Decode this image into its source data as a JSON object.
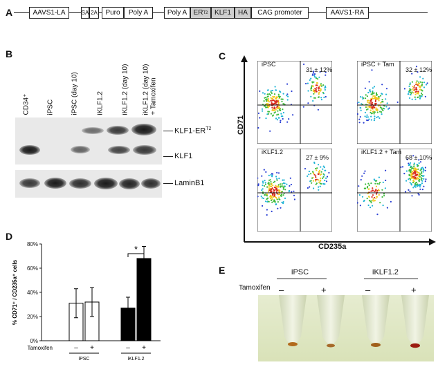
{
  "panels": {
    "a": "A",
    "b": "B",
    "c": "C",
    "d": "D",
    "e": "E"
  },
  "construct": {
    "segments": [
      "AAVS1-LA",
      "SA",
      "2A",
      "Puro",
      "Poly A",
      "Poly A",
      "ER",
      "KLF1",
      "HA",
      "CAG promoter",
      "AAVS1-RA"
    ],
    "er_superscript": "T2"
  },
  "blot": {
    "lanes": [
      "CD34⁺",
      "iPSC",
      "iPSC (day 10)",
      "iKLF1.2",
      "iKLF1.2 (day 10)",
      "iKLF1.2 (day 10)",
      "+ Tamoxifen"
    ],
    "band_labels": {
      "klf1_er": "KLF1-ER",
      "klf1_er_sup": "T2",
      "klf1": "KLF1",
      "lamin": "LaminB1"
    }
  },
  "flow": {
    "y_axis": "CD71",
    "x_axis": "CD235a",
    "plots": [
      {
        "title": "iPSC",
        "value": "31 ± 12%"
      },
      {
        "title": "iPSC + Tam",
        "value": "32 ± 12%"
      },
      {
        "title": "iKLF1.2",
        "value": "27 ± 9%"
      },
      {
        "title": "iKLF1.2 + Tam",
        "value": "68 ± 10%"
      }
    ]
  },
  "chart_data": {
    "type": "bar",
    "ylabel": "% CD71⁺ / CD235a⁺ cells",
    "ylim": [
      0,
      80
    ],
    "yticks": [
      "0%",
      "20%",
      "40%",
      "60%",
      "80%"
    ],
    "row_label": "Tamoxifen",
    "tamoxifen_marks": [
      "–",
      "+",
      "–",
      "+"
    ],
    "groups": [
      "iPSC",
      "iKLF1.2"
    ],
    "series": [
      {
        "group": "iPSC",
        "tamoxifen": "–",
        "value": 31,
        "error": 12,
        "fill": "white"
      },
      {
        "group": "iPSC",
        "tamoxifen": "+",
        "value": 32,
        "error": 12,
        "fill": "white"
      },
      {
        "group": "iKLF1.2",
        "tamoxifen": "–",
        "value": 27,
        "error": 9,
        "fill": "black"
      },
      {
        "group": "iKLF1.2",
        "tamoxifen": "+",
        "value": 68,
        "error": 10,
        "fill": "black"
      }
    ],
    "significance": "*"
  },
  "pellets": {
    "groups": [
      "iPSC",
      "iKLF1.2"
    ],
    "row_label": "Tamoxifen",
    "marks": [
      "–",
      "+",
      "–",
      "+"
    ]
  }
}
